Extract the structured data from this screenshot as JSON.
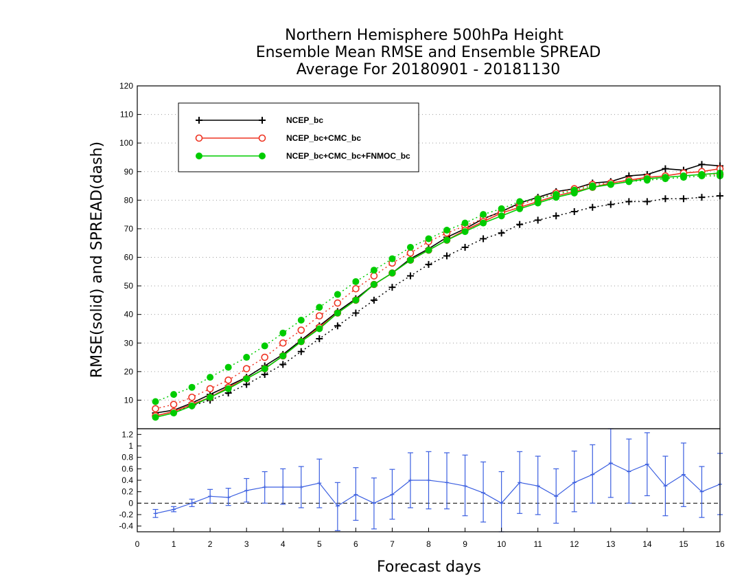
{
  "chart_data": [
    {
      "type": "line",
      "title": [
        "Northern Hemisphere 500hPa Height",
        "Ensemble Mean RMSE and Ensemble SPREAD",
        "Average For 20180901 - 20181130"
      ],
      "ylabel": "RMSE(solid) and SPREAD(dash)",
      "xlim": [
        0,
        16
      ],
      "ylim": [
        0,
        120
      ],
      "yticks": [
        10,
        20,
        30,
        40,
        50,
        60,
        70,
        80,
        90,
        100,
        110,
        120
      ],
      "grid": true,
      "legend_position": "top-left",
      "x": [
        0.5,
        1,
        1.5,
        2,
        2.5,
        3,
        3.5,
        4,
        4.5,
        5,
        5.5,
        6,
        6.5,
        7,
        7.5,
        8,
        8.5,
        9,
        9.5,
        10,
        10.5,
        11,
        11.5,
        12,
        12.5,
        13,
        13.5,
        14,
        14.5,
        15,
        15.5,
        16
      ],
      "series": [
        {
          "name": "NCEP_bc",
          "color": "#000000",
          "marker": "plus",
          "rmse": [
            5.5,
            6.5,
            9,
            12,
            15,
            18,
            22,
            26,
            31,
            36,
            41,
            45.5,
            50.5,
            54.5,
            59.5,
            63,
            67,
            70,
            73.5,
            76,
            79,
            81,
            83,
            84,
            86,
            86.5,
            88.5,
            89,
            91,
            90.5,
            92.5,
            92
          ],
          "spread": [
            4.5,
            6,
            8,
            10,
            12.5,
            15.5,
            19,
            22.5,
            27,
            31.5,
            36,
            40.5,
            45,
            49.5,
            53.5,
            57.5,
            60.5,
            63.5,
            66.5,
            68.5,
            71.5,
            73,
            74.5,
            76,
            77.5,
            78.5,
            79.5,
            79.5,
            80.5,
            80.5,
            81,
            81.5
          ]
        },
        {
          "name": "NCEP_bc+CMC_bc",
          "color": "#ee3322",
          "marker": "open-circle",
          "rmse": [
            4.5,
            6,
            8.5,
            11,
            14.5,
            17.5,
            21,
            25.5,
            30.5,
            35.5,
            40.5,
            45,
            50.5,
            54.5,
            59,
            62.5,
            66,
            69.5,
            72.5,
            75.5,
            77.5,
            79.5,
            81.5,
            83,
            84.5,
            86,
            87,
            88,
            88.5,
            89.5,
            90,
            91
          ],
          "spread": [
            7,
            8.5,
            11,
            14,
            17,
            21,
            25,
            30,
            34.5,
            39.5,
            44,
            49,
            53.5,
            58,
            61.5,
            65.5,
            68.5,
            71,
            73.5,
            76,
            78.5,
            80.5,
            82.5,
            84,
            85.5,
            86,
            87,
            87.5,
            88,
            88.5,
            89,
            89
          ]
        },
        {
          "name": "NCEP_bc+CMC_bc+FNMOC_bc",
          "color": "#00cc00",
          "marker": "filled-circle",
          "rmse": [
            4,
            5.5,
            8,
            11,
            14,
            17.5,
            21,
            25.5,
            30.5,
            35,
            40.5,
            45,
            50.5,
            54.5,
            59,
            62.5,
            66,
            69,
            72,
            74.5,
            77,
            79,
            81,
            82.5,
            84.5,
            85.5,
            86.5,
            87.5,
            88,
            88.5,
            89,
            89.5
          ],
          "spread": [
            9.5,
            12,
            14.5,
            18,
            21.5,
            25,
            29,
            33.5,
            38,
            42.5,
            47,
            51.5,
            55.5,
            59.5,
            63.5,
            66.5,
            69.5,
            72,
            75,
            77,
            79.5,
            80.5,
            82,
            83.5,
            85,
            85.5,
            86.5,
            87,
            87.5,
            88,
            88.5,
            88.5
          ]
        }
      ]
    },
    {
      "type": "line",
      "title": "",
      "xlabel": "Forecast days",
      "xlim": [
        0,
        16
      ],
      "xticks": [
        0,
        1,
        2,
        3,
        4,
        5,
        6,
        7,
        8,
        9,
        10,
        11,
        12,
        13,
        14,
        15,
        16
      ],
      "ylim": [
        -0.5,
        1.3
      ],
      "yticks": [
        -0.4,
        -0.2,
        0,
        0.2,
        0.4,
        0.6,
        0.8,
        1,
        1.2
      ],
      "zero_line": true,
      "series": [
        {
          "color": "#3a5ee0",
          "marker": "plus",
          "x": [
            0.5,
            1,
            1.5,
            2,
            2.5,
            3,
            3.5,
            4,
            4.5,
            5,
            5.5,
            6,
            6.5,
            7,
            7.5,
            8,
            8.5,
            9,
            9.5,
            10,
            10.5,
            11,
            11.5,
            12,
            12.5,
            13,
            13.5,
            14,
            14.5,
            15,
            15.5,
            16
          ],
          "values": [
            -0.18,
            -0.11,
            0.0,
            0.12,
            0.1,
            0.22,
            0.28,
            0.28,
            0.28,
            0.35,
            -0.05,
            0.15,
            0.0,
            0.15,
            0.4,
            0.4,
            0.36,
            0.3,
            0.18,
            0.0,
            0.36,
            0.3,
            0.12,
            0.36,
            0.5,
            0.7,
            0.55,
            0.68,
            0.3,
            0.5,
            0.2,
            0.33
          ],
          "err_low": [
            -0.25,
            -0.15,
            -0.06,
            0.0,
            -0.04,
            0.02,
            0.0,
            -0.02,
            -0.08,
            -0.08,
            -0.48,
            -0.3,
            -0.45,
            -0.28,
            -0.08,
            -0.1,
            -0.1,
            -0.22,
            -0.33,
            -0.5,
            -0.18,
            -0.2,
            -0.35,
            -0.15,
            0.0,
            0.1,
            0.0,
            0.13,
            -0.22,
            -0.06,
            -0.25,
            -0.2
          ],
          "err_high": [
            -0.11,
            -0.06,
            0.07,
            0.24,
            0.26,
            0.43,
            0.55,
            0.6,
            0.64,
            0.77,
            0.36,
            0.62,
            0.44,
            0.59,
            0.88,
            0.9,
            0.88,
            0.84,
            0.72,
            0.55,
            0.9,
            0.82,
            0.6,
            0.91,
            1.02,
            1.3,
            1.12,
            1.23,
            0.82,
            1.05,
            0.64,
            0.87
          ]
        }
      ]
    }
  ]
}
